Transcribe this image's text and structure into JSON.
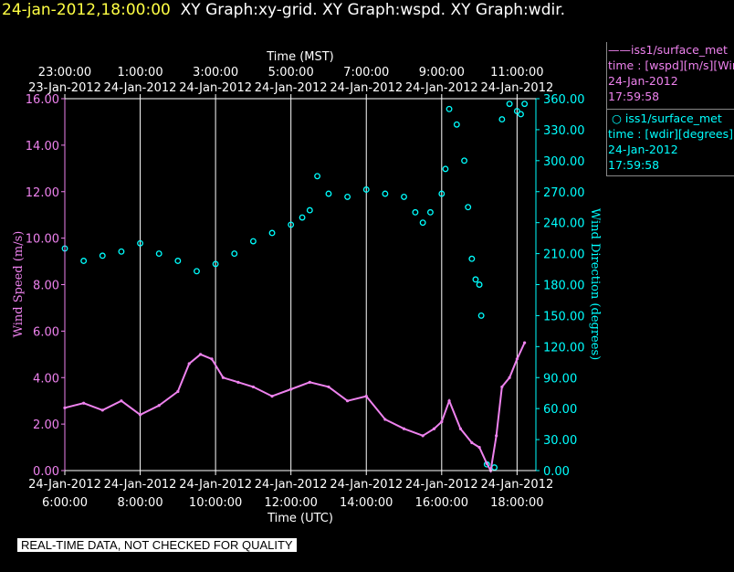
{
  "header": {
    "timestamp": "24-jan-2012,18:00:00",
    "titles": "XY Graph:xy-grid.  XY Graph:wspd.  XY Graph:wdir."
  },
  "legend": [
    {
      "marker": "——",
      "name": "iss1/surface_met",
      "var": "time : [wspd][m/s][Wind",
      "date": "24-Jan-2012",
      "time": "17:59:58",
      "color": "#ee82ee"
    },
    {
      "marker": "○",
      "name": "iss1/surface_met",
      "var": "time : [wdir][degrees][W",
      "date": "24-Jan-2012",
      "time": "17:59:58",
      "color": "#00ffff"
    }
  ],
  "disclaimer": "REAL-TIME DATA, NOT CHECKED FOR QUALITY",
  "colors": {
    "wspd": "#ee82ee",
    "wdir": "#00ffff",
    "grid": "#ffffff",
    "background": "#000000"
  },
  "chart_data": {
    "type": "line",
    "x_bottom_label": "Time (UTC)",
    "x_top_label": "Time (MST)",
    "x_range_hours_utc": [
      6.0,
      18.5
    ],
    "x_bottom_ticks": [
      {
        "hour": 6,
        "date": "24-Jan-2012",
        "time": "6:00:00"
      },
      {
        "hour": 8,
        "date": "24-Jan-2012",
        "time": "8:00:00"
      },
      {
        "hour": 10,
        "date": "24-Jan-2012",
        "time": "10:00:00"
      },
      {
        "hour": 12,
        "date": "24-Jan-2012",
        "time": "12:00:00"
      },
      {
        "hour": 14,
        "date": "24-Jan-2012",
        "time": "14:00:00"
      },
      {
        "hour": 16,
        "date": "24-Jan-2012",
        "time": "16:00:00"
      },
      {
        "hour": 18,
        "date": "24-Jan-2012",
        "time": "18:00:00"
      }
    ],
    "x_top_ticks": [
      {
        "hour": 6,
        "time": "23:00:00",
        "date": "23-Jan-2012"
      },
      {
        "hour": 8,
        "time": "1:00:00",
        "date": "24-Jan-2012"
      },
      {
        "hour": 10,
        "time": "3:00:00",
        "date": "24-Jan-2012"
      },
      {
        "hour": 12,
        "time": "5:00:00",
        "date": "24-Jan-2012"
      },
      {
        "hour": 14,
        "time": "7:00:00",
        "date": "24-Jan-2012"
      },
      {
        "hour": 16,
        "time": "9:00:00",
        "date": "24-Jan-2012"
      },
      {
        "hour": 18,
        "time": "11:00:00",
        "date": "24-Jan-2012"
      }
    ],
    "y_left": {
      "label": "Wind Speed (m/s)",
      "range": [
        0,
        16
      ],
      "ticks": [
        "0.00",
        "2.00",
        "4.00",
        "6.00",
        "8.00",
        "10.00",
        "12.00",
        "14.00",
        "16.00"
      ]
    },
    "y_right": {
      "label": "Wind Direction (degrees)",
      "range": [
        0,
        360
      ],
      "ticks": [
        "0.00",
        "30.00",
        "60.00",
        "90.00",
        "120.00",
        "150.00",
        "180.00",
        "210.00",
        "240.00",
        "270.00",
        "300.00",
        "330.00",
        "360.00"
      ]
    },
    "grid": true,
    "series": [
      {
        "axis": "left",
        "style": "line",
        "color": "#ee82ee",
        "x": [
          6.0,
          6.5,
          7.0,
          7.5,
          8.0,
          8.5,
          9.0,
          9.3,
          9.6,
          9.9,
          10.2,
          10.6,
          11.0,
          11.5,
          12.0,
          12.5,
          13.0,
          13.5,
          14.0,
          14.5,
          15.0,
          15.5,
          15.8,
          16.0,
          16.2,
          16.5,
          16.8,
          17.0,
          17.2,
          17.3,
          17.45,
          17.6,
          17.8,
          18.0,
          18.2
        ],
        "y": [
          2.7,
          2.9,
          2.6,
          3.0,
          2.4,
          2.8,
          3.4,
          4.6,
          5.0,
          4.8,
          4.0,
          3.8,
          3.6,
          3.2,
          3.5,
          3.8,
          3.6,
          3.0,
          3.2,
          2.2,
          1.8,
          1.5,
          1.8,
          2.1,
          3.0,
          1.8,
          1.2,
          1.0,
          0.3,
          0.0,
          1.5,
          3.6,
          4.0,
          4.8,
          5.5
        ]
      },
      {
        "axis": "right",
        "style": "markers",
        "color": "#00ffff",
        "x": [
          6.0,
          6.5,
          7.0,
          7.5,
          8.0,
          8.5,
          9.0,
          9.5,
          10.0,
          10.5,
          11.0,
          11.5,
          12.0,
          12.3,
          12.5,
          12.7,
          13.0,
          13.5,
          14.0,
          14.5,
          15.0,
          15.3,
          15.5,
          15.7,
          16.0,
          16.1,
          16.2,
          16.4,
          16.6,
          16.7,
          16.8,
          16.9,
          17.0,
          17.05,
          17.2,
          17.4,
          17.6,
          17.8,
          18.0,
          18.1,
          18.2
        ],
        "y": [
          215,
          203,
          208,
          212,
          220,
          210,
          203,
          193,
          200,
          210,
          222,
          230,
          238,
          245,
          252,
          285,
          268,
          265,
          272,
          268,
          265,
          250,
          240,
          250,
          268,
          292,
          350,
          335,
          300,
          255,
          205,
          185,
          180,
          150,
          6,
          3,
          340,
          355,
          348,
          345,
          355
        ]
      }
    ]
  }
}
